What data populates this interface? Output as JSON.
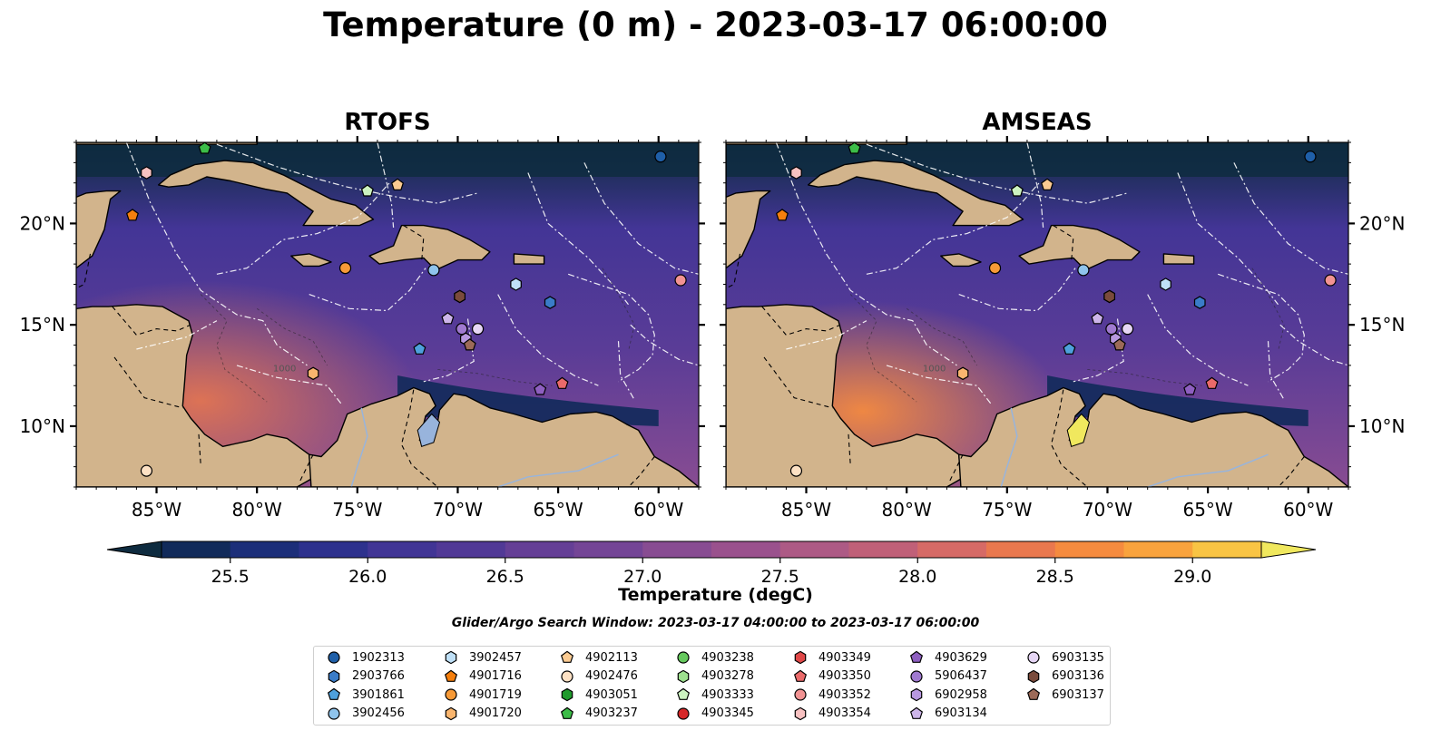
{
  "title": "Temperature (0 m) - 2023-03-17 06:00:00",
  "panels": [
    {
      "title": "RTOFS"
    },
    {
      "title": "AMSEAS"
    }
  ],
  "map": {
    "lon_ticks": [
      "85°W",
      "80°W",
      "75°W",
      "70°W",
      "65°W",
      "60°W"
    ],
    "lat_ticks": [
      "20°N",
      "15°N",
      "10°N"
    ],
    "extent": {
      "lon": [
        -89,
        -58
      ],
      "lat": [
        7,
        24
      ]
    },
    "land_color": "#d2b48c",
    "pacific_color": "#98b4dc",
    "contour_labels": [
      "1000"
    ]
  },
  "colorbar": {
    "label": "Temperature (degC)",
    "ticks": [
      "25.5",
      "26.0",
      "26.5",
      "27.0",
      "27.5",
      "28.0",
      "28.5",
      "29.0"
    ],
    "range": [
      25.25,
      29.25
    ],
    "step": 0.25,
    "colors": [
      "#0e2b3f",
      "#112a5a",
      "#1c2e79",
      "#2d318d",
      "#413595",
      "#513996",
      "#653f96",
      "#744596",
      "#884c92",
      "#9a518d",
      "#ad5a85",
      "#c06078",
      "#d66a66",
      "#e9784e",
      "#f58b3f",
      "#f9a33d",
      "#f9c444",
      "#f0e85e"
    ]
  },
  "search_window": "Glider/Argo Search Window: 2023-03-17 04:00:00 to 2023-03-17 06:00:00",
  "legend": [
    {
      "id": "1902313",
      "marker": "circle",
      "color": "#1f5fa8"
    },
    {
      "id": "2903766",
      "marker": "hexagon",
      "color": "#3a7cc8"
    },
    {
      "id": "3901861",
      "marker": "pentagon",
      "color": "#4ea0dc"
    },
    {
      "id": "3902456",
      "marker": "circle",
      "color": "#8fc4ec"
    },
    {
      "id": "3902457",
      "marker": "hexagon",
      "color": "#bfe0f7"
    },
    {
      "id": "4901716",
      "marker": "pentagon",
      "color": "#f57f0d"
    },
    {
      "id": "4901719",
      "marker": "circle",
      "color": "#f79a37"
    },
    {
      "id": "4901720",
      "marker": "hexagon",
      "color": "#f9b56e"
    },
    {
      "id": "4902113",
      "marker": "pentagon",
      "color": "#fbcb92"
    },
    {
      "id": "4902476",
      "marker": "circle",
      "color": "#fde1c4"
    },
    {
      "id": "4903051",
      "marker": "hexagon",
      "color": "#1f9a2c"
    },
    {
      "id": "4903237",
      "marker": "pentagon",
      "color": "#3cbd48"
    },
    {
      "id": "4903238",
      "marker": "circle",
      "color": "#66c95e"
    },
    {
      "id": "4903278",
      "marker": "hexagon",
      "color": "#9ee08f"
    },
    {
      "id": "4903333",
      "marker": "pentagon",
      "color": "#ccf2c0"
    },
    {
      "id": "4903345",
      "marker": "circle",
      "color": "#d62728"
    },
    {
      "id": "4903349",
      "marker": "hexagon",
      "color": "#e04848"
    },
    {
      "id": "4903350",
      "marker": "pentagon",
      "color": "#ea6a6a"
    },
    {
      "id": "4903352",
      "marker": "circle",
      "color": "#f29393"
    },
    {
      "id": "4903354",
      "marker": "hexagon",
      "color": "#f8c1c1"
    },
    {
      "id": "4903629",
      "marker": "pentagon",
      "color": "#8e5fc0"
    },
    {
      "id": "5906437",
      "marker": "circle",
      "color": "#a07ad0"
    },
    {
      "id": "6902958",
      "marker": "hexagon",
      "color": "#b898e0"
    },
    {
      "id": "6903134",
      "marker": "pentagon",
      "color": "#cdb5ea"
    },
    {
      "id": "6903135",
      "marker": "circle",
      "color": "#e6d6f5"
    },
    {
      "id": "6903136",
      "marker": "hexagon",
      "color": "#7a4b3c"
    },
    {
      "id": "6903137",
      "marker": "pentagon",
      "color": "#9c6a58"
    }
  ],
  "observations": [
    {
      "id": "1902313",
      "lon": -59.9,
      "lat": 23.3
    },
    {
      "id": "2903766",
      "lon": -65.4,
      "lat": 16.1
    },
    {
      "id": "3901861",
      "lon": -71.9,
      "lat": 13.8
    },
    {
      "id": "3902456",
      "lon": -71.2,
      "lat": 17.7
    },
    {
      "id": "3902457",
      "lon": -67.1,
      "lat": 17.0
    },
    {
      "id": "4901716",
      "lon": -86.2,
      "lat": 20.4
    },
    {
      "id": "4901719",
      "lon": -75.6,
      "lat": 17.8
    },
    {
      "id": "4901720",
      "lon": -77.2,
      "lat": 12.6
    },
    {
      "id": "4902113",
      "lon": -73.0,
      "lat": 21.9
    },
    {
      "id": "4902476",
      "lon": -85.5,
      "lat": 7.8
    },
    {
      "id": "4903237",
      "lon": -82.6,
      "lat": 23.7
    },
    {
      "id": "4903333",
      "lon": -74.5,
      "lat": 21.6
    },
    {
      "id": "4903349",
      "lon": -69.9,
      "lat": 16.4
    },
    {
      "id": "4903350",
      "lon": -64.8,
      "lat": 12.1
    },
    {
      "id": "4903352",
      "lon": -58.9,
      "lat": 17.2
    },
    {
      "id": "4903354",
      "lon": -85.5,
      "lat": 22.5
    },
    {
      "id": "4903629",
      "lon": -65.9,
      "lat": 11.8
    },
    {
      "id": "5906437",
      "lon": -69.8,
      "lat": 14.8
    },
    {
      "id": "6902958",
      "lon": -69.6,
      "lat": 14.3
    },
    {
      "id": "6903134",
      "lon": -70.5,
      "lat": 15.3
    },
    {
      "id": "6903135",
      "lon": -69.0,
      "lat": 14.8
    },
    {
      "id": "6903136",
      "lon": -69.9,
      "lat": 16.4
    },
    {
      "id": "6903137",
      "lon": -69.4,
      "lat": 14.0
    }
  ]
}
